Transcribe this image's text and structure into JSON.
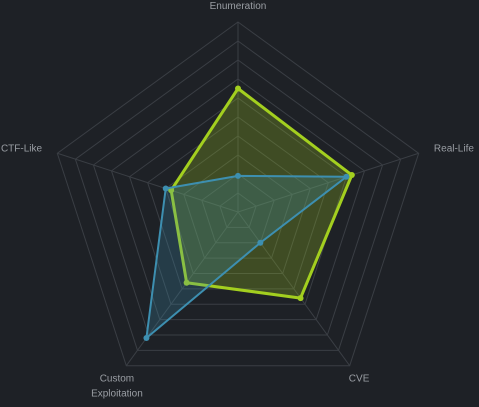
{
  "chart_data": {
    "type": "radar",
    "categories": [
      "Enumeration",
      "Real-Life",
      "CVE",
      "Custom Exploitation",
      "CTF-Like"
    ],
    "rlim": [
      0,
      10
    ],
    "rticks": [
      1,
      2,
      3,
      4,
      5,
      6,
      7,
      8,
      9,
      10
    ],
    "grid": true,
    "series": [
      {
        "color": "#a3cf1f",
        "values": [
          6.5,
          6.3,
          5.6,
          4.6,
          3.7
        ]
      },
      {
        "color": "#3d8fb0",
        "values": [
          1.9,
          6.0,
          2.0,
          8.2,
          4.0
        ]
      }
    ]
  }
}
